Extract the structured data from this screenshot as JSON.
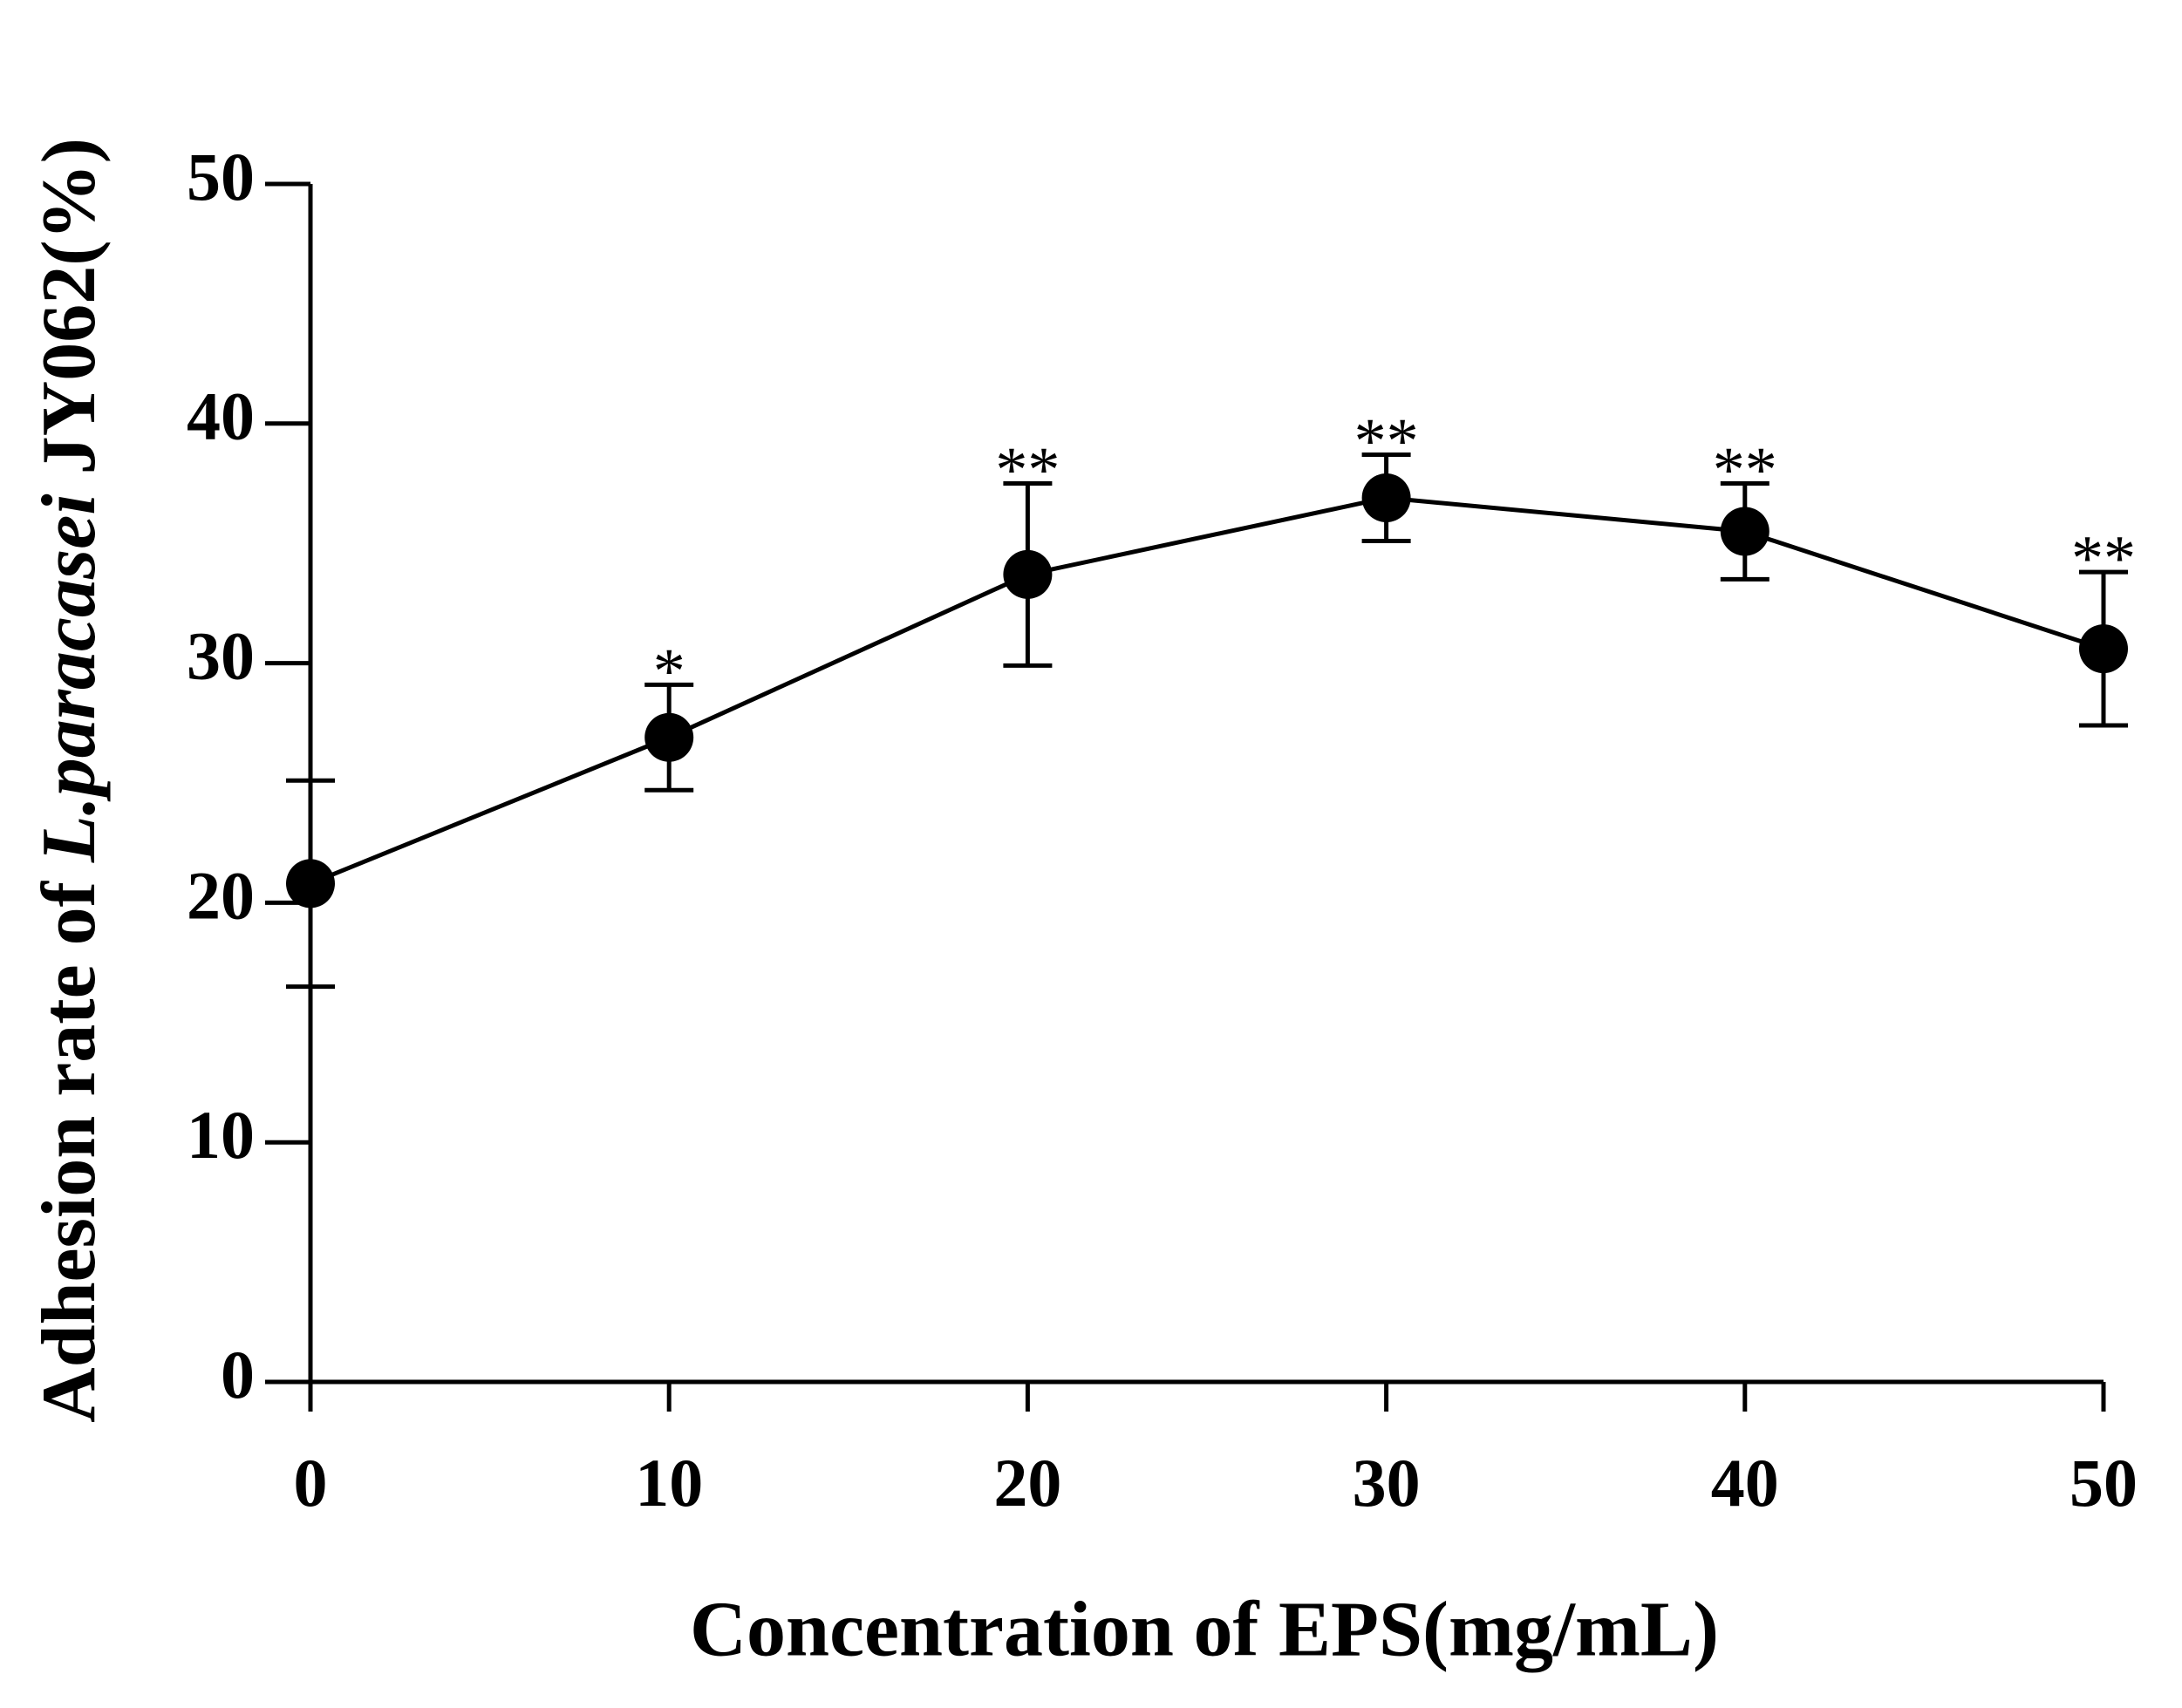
{
  "chart_data": {
    "type": "line",
    "xlabel": "Concentration of EPS(mg/mL)",
    "ylabel_parts": [
      {
        "text": "Adhesion rate of",
        "italic": false
      },
      {
        "text": "L.paracasei",
        "italic": true
      },
      {
        "text": "JY062(%)",
        "italic": false
      }
    ],
    "x": [
      0,
      10,
      20,
      30,
      40,
      50
    ],
    "series": [
      {
        "color": "#000000",
        "values": [
          20.8,
          26.9,
          33.7,
          36.9,
          35.5,
          30.6
        ],
        "errors": [
          4.3,
          2.2,
          3.8,
          1.8,
          2.0,
          3.2
        ],
        "annotations": [
          null,
          "*",
          "**",
          "**",
          "**",
          "**"
        ]
      }
    ],
    "xlim": [
      0,
      50
    ],
    "xticks": [
      0,
      10,
      20,
      30,
      40,
      50
    ],
    "ylim": [
      0,
      50
    ],
    "yticks": [
      0,
      10,
      20,
      30,
      40,
      50
    ],
    "grid": false
  }
}
